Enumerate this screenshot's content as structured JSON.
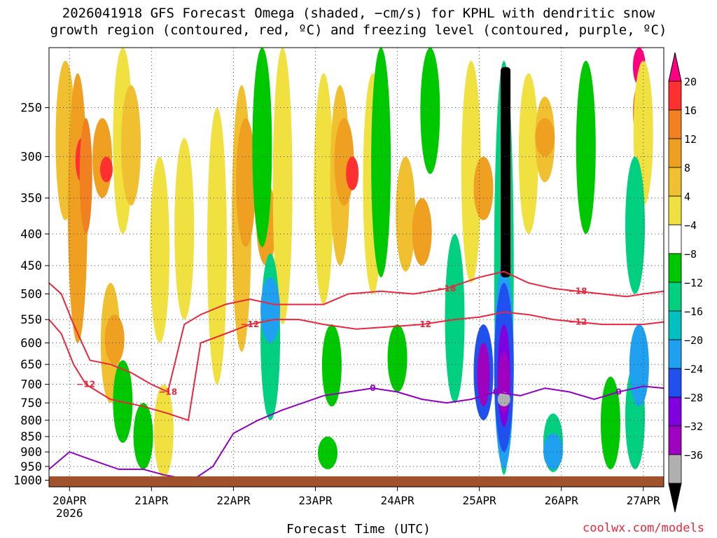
{
  "title_line1": "2026041918 GFS Forecast Omega (shaded, −cm/s) for KPHL with dendritic snow",
  "title_line2": "growth region (contoured, red, ºC) and freezing level (contoured, purple, ºC)",
  "credit": "coolwx.com/models",
  "chart_data": {
    "type": "heatmap",
    "xlabel": "Forecast Time (UTC)",
    "ylabel": "",
    "x_range_days": [
      19.75,
      27.25
    ],
    "x_ticks": [
      {
        "day": 20,
        "label": "20APR",
        "sublabel": "2026"
      },
      {
        "day": 21,
        "label": "21APR",
        "sublabel": ""
      },
      {
        "day": 22,
        "label": "22APR",
        "sublabel": ""
      },
      {
        "day": 23,
        "label": "23APR",
        "sublabel": ""
      },
      {
        "day": 24,
        "label": "24APR",
        "sublabel": ""
      },
      {
        "day": 25,
        "label": "25APR",
        "sublabel": ""
      },
      {
        "day": 26,
        "label": "26APR",
        "sublabel": ""
      },
      {
        "day": 27,
        "label": "27APR",
        "sublabel": ""
      }
    ],
    "y_log_pressure_range": [
      1025,
      200
    ],
    "y_ticks": [
      250,
      300,
      350,
      400,
      450,
      500,
      550,
      600,
      650,
      700,
      750,
      800,
      850,
      900,
      950,
      1000
    ],
    "grid": true,
    "colorbar": {
      "labels": [
        "20",
        "16",
        "12",
        "8",
        "4",
        "−4",
        "−8",
        "−12",
        "−16",
        "−20",
        "−24",
        "−28",
        "−32",
        "−36"
      ],
      "colors": [
        "#ff0080",
        "#ff3030",
        "#f08020",
        "#f0a020",
        "#f0c030",
        "#f0e040",
        "#ffffff",
        "#00c800",
        "#00d080",
        "#00c0c0",
        "#20a0f0",
        "#2050f0",
        "#8000e0",
        "#a000c0",
        "#b0b0b0",
        "#000000"
      ]
    },
    "blobs": [
      {
        "day": 19.95,
        "p0": 210,
        "p1": 380,
        "level": 4
      },
      {
        "day": 20.1,
        "p0": 220,
        "p1": 600,
        "level": 3
      },
      {
        "day": 20.15,
        "p0": 280,
        "p1": 330,
        "level": 1
      },
      {
        "day": 20.2,
        "p0": 260,
        "p1": 400,
        "level": 2
      },
      {
        "day": 20.4,
        "p0": 260,
        "p1": 350,
        "level": 3
      },
      {
        "day": 20.45,
        "p0": 300,
        "p1": 330,
        "level": 1
      },
      {
        "day": 20.5,
        "p0": 480,
        "p1": 750,
        "level": 4
      },
      {
        "day": 20.55,
        "p0": 540,
        "p1": 650,
        "level": 3
      },
      {
        "day": 20.65,
        "p0": 200,
        "p1": 400,
        "level": 5
      },
      {
        "day": 20.75,
        "p0": 230,
        "p1": 360,
        "level": 4
      },
      {
        "day": 21.1,
        "p0": 300,
        "p1": 600,
        "level": 5
      },
      {
        "day": 21.15,
        "p0": 700,
        "p1": 990,
        "level": 5
      },
      {
        "day": 21.4,
        "p0": 280,
        "p1": 550,
        "level": 5
      },
      {
        "day": 21.8,
        "p0": 250,
        "p1": 700,
        "level": 5
      },
      {
        "day": 22.1,
        "p0": 230,
        "p1": 620,
        "level": 4
      },
      {
        "day": 22.15,
        "p0": 260,
        "p1": 420,
        "level": 3
      },
      {
        "day": 22.4,
        "p0": 330,
        "p1": 450,
        "level": 3
      },
      {
        "day": 22.6,
        "p0": 200,
        "p1": 560,
        "level": 5
      },
      {
        "day": 23.1,
        "p0": 220,
        "p1": 520,
        "level": 5
      },
      {
        "day": 23.3,
        "p0": 230,
        "p1": 450,
        "level": 4
      },
      {
        "day": 23.35,
        "p0": 260,
        "p1": 360,
        "level": 3
      },
      {
        "day": 23.45,
        "p0": 300,
        "p1": 340,
        "level": 1
      },
      {
        "day": 23.7,
        "p0": 220,
        "p1": 500,
        "level": 5
      },
      {
        "day": 24.1,
        "p0": 300,
        "p1": 460,
        "level": 4
      },
      {
        "day": 24.3,
        "p0": 350,
        "p1": 450,
        "level": 3
      },
      {
        "day": 24.9,
        "p0": 210,
        "p1": 480,
        "level": 5
      },
      {
        "day": 25.05,
        "p0": 300,
        "p1": 380,
        "level": 3
      },
      {
        "day": 25.6,
        "p0": 220,
        "p1": 400,
        "level": 5
      },
      {
        "day": 25.8,
        "p0": 240,
        "p1": 330,
        "level": 4
      },
      {
        "day": 25.8,
        "p0": 260,
        "p1": 300,
        "level": 3
      },
      {
        "day": 26.95,
        "p0": 200,
        "p1": 230,
        "level": 0
      },
      {
        "day": 26.95,
        "p0": 230,
        "p1": 280,
        "level": 2
      },
      {
        "day": 27.0,
        "p0": 210,
        "p1": 360,
        "level": 5
      },
      {
        "day": 20.65,
        "p0": 640,
        "p1": 870,
        "level": 7
      },
      {
        "day": 20.9,
        "p0": 750,
        "p1": 960,
        "level": 7
      },
      {
        "day": 22.35,
        "p0": 200,
        "p1": 420,
        "level": 7
      },
      {
        "day": 22.45,
        "p0": 430,
        "p1": 800,
        "level": 8
      },
      {
        "day": 22.45,
        "p0": 470,
        "p1": 600,
        "level": 10
      },
      {
        "day": 23.2,
        "p0": 560,
        "p1": 760,
        "level": 7
      },
      {
        "day": 23.15,
        "p0": 850,
        "p1": 960,
        "level": 7
      },
      {
        "day": 23.8,
        "p0": 200,
        "p1": 470,
        "level": 7
      },
      {
        "day": 24.0,
        "p0": 560,
        "p1": 720,
        "level": 7
      },
      {
        "day": 24.4,
        "p0": 200,
        "p1": 320,
        "level": 7
      },
      {
        "day": 24.7,
        "p0": 400,
        "p1": 750,
        "level": 8
      },
      {
        "day": 25.3,
        "p0": 210,
        "p1": 980,
        "level": 8
      },
      {
        "day": 25.3,
        "p0": 440,
        "p1": 960,
        "level": 10
      },
      {
        "day": 25.3,
        "p0": 480,
        "p1": 900,
        "level": 11
      },
      {
        "day": 25.3,
        "p0": 560,
        "p1": 820,
        "level": 12
      },
      {
        "day": 25.3,
        "p0": 620,
        "p1": 780,
        "level": 13
      },
      {
        "day": 25.3,
        "p0": 720,
        "p1": 760,
        "level": 14
      },
      {
        "day": 25.05,
        "p0": 560,
        "p1": 800,
        "level": 11
      },
      {
        "day": 25.05,
        "p0": 600,
        "p1": 760,
        "level": 13
      },
      {
        "day": 25.9,
        "p0": 780,
        "p1": 970,
        "level": 8
      },
      {
        "day": 25.9,
        "p0": 840,
        "p1": 960,
        "level": 10
      },
      {
        "day": 26.3,
        "p0": 210,
        "p1": 400,
        "level": 7
      },
      {
        "day": 26.6,
        "p0": 680,
        "p1": 960,
        "level": 7
      },
      {
        "day": 26.9,
        "p0": 300,
        "p1": 500,
        "level": 8
      },
      {
        "day": 26.9,
        "p0": 650,
        "p1": 960,
        "level": 8
      },
      {
        "day": 26.95,
        "p0": 560,
        "p1": 760,
        "level": 10
      }
    ],
    "extreme_column": {
      "day": 25.32,
      "p0": 215,
      "p1": 470,
      "level": 15
    },
    "freezing_level": {
      "label": "0",
      "days": [
        19.75,
        20.0,
        20.3,
        20.6,
        20.9,
        21.15,
        21.5,
        21.75,
        22.0,
        22.3,
        22.6,
        22.85,
        23.1,
        23.4,
        23.7,
        24.0,
        24.3,
        24.6,
        24.9,
        25.2,
        25.5,
        25.8,
        26.1,
        26.4,
        26.7,
        27.0,
        27.25
      ],
      "pressures": [
        960,
        900,
        930,
        960,
        960,
        980,
        1000,
        950,
        840,
        800,
        770,
        750,
        730,
        720,
        710,
        720,
        740,
        750,
        740,
        720,
        730,
        710,
        720,
        740,
        720,
        705,
        710
      ]
    },
    "dgz_minus12": {
      "label": "−12",
      "days": [
        19.75,
        19.9,
        20.05,
        20.2,
        20.5,
        20.9,
        21.2,
        21.45,
        21.6,
        21.9,
        22.2,
        22.5,
        22.8,
        23.1,
        23.5,
        23.9,
        24.3,
        24.7,
        25.0,
        25.3,
        25.6,
        25.9,
        26.2,
        26.5,
        26.8,
        27.0,
        27.25
      ],
      "pressures": [
        550,
        580,
        650,
        700,
        740,
        760,
        780,
        800,
        600,
        580,
        560,
        550,
        550,
        560,
        570,
        565,
        560,
        550,
        545,
        535,
        540,
        550,
        555,
        560,
        560,
        560,
        555
      ]
    },
    "dgz_minus18": {
      "label": "−18",
      "days": [
        19.75,
        19.9,
        20.05,
        20.25,
        20.5,
        20.75,
        21.0,
        21.2,
        21.4,
        21.6,
        21.9,
        22.2,
        22.5,
        22.8,
        23.1,
        23.4,
        23.8,
        24.2,
        24.6,
        25.0,
        25.3,
        25.6,
        25.9,
        26.2,
        26.5,
        26.8,
        27.0,
        27.25
      ],
      "pressures": [
        480,
        500,
        560,
        640,
        650,
        670,
        700,
        720,
        560,
        540,
        520,
        510,
        520,
        520,
        520,
        500,
        495,
        500,
        490,
        470,
        460,
        480,
        490,
        495,
        500,
        505,
        500,
        495
      ]
    }
  }
}
